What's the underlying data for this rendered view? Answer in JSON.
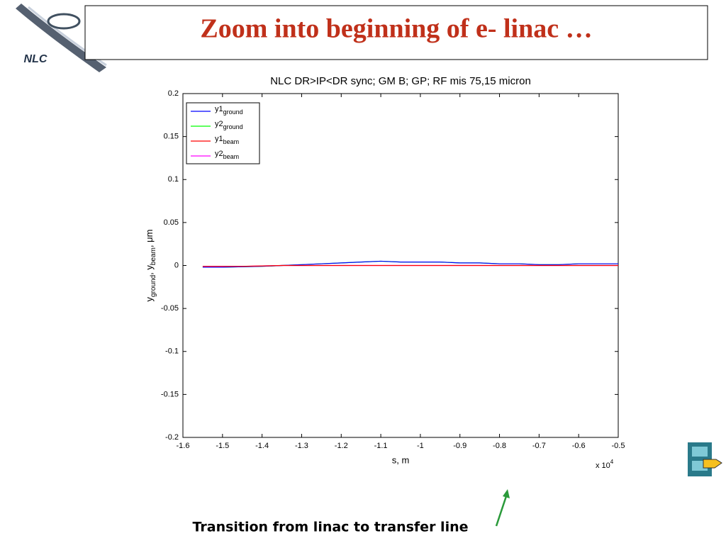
{
  "slide_title": "Zoom into beginning of e- linac …",
  "logo_text": "NLC",
  "caption": "Transition from linac to transfer line",
  "chart_data": {
    "type": "line",
    "title": "NLC DR>IP<DR sync; GM B; GP; RF mis 75,15 micron",
    "xlabel": "s, m",
    "ylabel": [
      {
        "text": "y",
        "sub": false
      },
      {
        "text": "ground",
        "sub": true
      },
      {
        "text": ", y",
        "sub": false
      },
      {
        "text": "beam",
        "sub": true
      },
      {
        "text": ", μm",
        "sub": false
      }
    ],
    "x_multiplier": {
      "base": "x 10",
      "exponent": "4"
    },
    "x": [
      -1.55,
      -1.5,
      -1.45,
      -1.4,
      -1.35,
      -1.3,
      -1.25,
      -1.2,
      -1.15,
      -1.1,
      -1.05,
      -1.0,
      -0.95,
      -0.9,
      -0.85,
      -0.8,
      -0.75,
      -0.7,
      -0.65,
      -0.6,
      -0.55,
      -0.5
    ],
    "series": [
      {
        "name": "y1",
        "subscript": "ground",
        "color": "#0000ff",
        "values": [
          -0.002,
          -0.002,
          -0.0015,
          -0.001,
          0,
          0.001,
          0.002,
          0.003,
          0.004,
          0.005,
          0.004,
          0.004,
          0.004,
          0.003,
          0.003,
          0.002,
          0.002,
          0.001,
          0.001,
          0.002,
          0.002,
          0.002
        ]
      },
      {
        "name": "y2",
        "subscript": "ground",
        "color": "#00ff00",
        "values": [
          -0.002,
          -0.002,
          -0.0015,
          -0.001,
          0,
          0.001,
          0.002,
          0.003,
          0.004,
          0.005,
          0.004,
          0.004,
          0.004,
          0.003,
          0.003,
          0.002,
          0.002,
          0.001,
          0.001,
          0.002,
          0.002,
          0.002
        ]
      },
      {
        "name": "y1",
        "subscript": "beam",
        "color": "#ff0000",
        "values": [
          -0.001,
          -0.001,
          -0.001,
          -0.0005,
          0,
          0,
          0,
          0,
          0,
          0,
          0,
          0,
          0,
          0,
          0,
          0,
          0,
          0,
          0,
          0,
          0,
          0
        ]
      },
      {
        "name": "y2",
        "subscript": "beam",
        "color": "#ff00ff",
        "values": [
          -0.001,
          -0.001,
          -0.001,
          -0.0005,
          0,
          0,
          0,
          0,
          0,
          0,
          0,
          0,
          0,
          0,
          0,
          0,
          0,
          0,
          0,
          0,
          0,
          0
        ]
      }
    ],
    "xlim": [
      -1.6,
      -0.5
    ],
    "xticks": [
      -1.6,
      -1.5,
      -1.4,
      -1.3,
      -1.2,
      -1.1,
      -1,
      -0.9,
      -0.8,
      -0.7,
      -0.6,
      -0.5
    ],
    "ylim": [
      -0.2,
      0.2
    ],
    "yticks": [
      -0.2,
      -0.15,
      -0.1,
      -0.05,
      0,
      0.05,
      0.1,
      0.15,
      0.2
    ],
    "grid": false,
    "legend": "upper-left"
  }
}
